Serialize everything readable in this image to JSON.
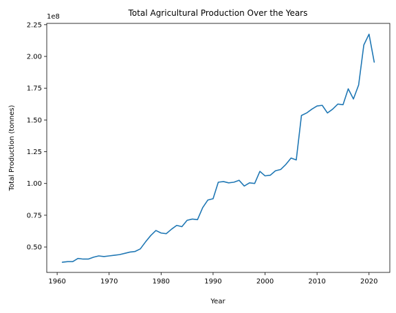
{
  "chart_data": {
    "type": "line",
    "title": "Total Agricultural Production Over the Years",
    "xlabel": "Year",
    "ylabel": "Total Production (tonnes)",
    "y_multiplier_label": "1e8",
    "y_scale": 100000000,
    "xlim": [
      1958,
      2024
    ],
    "ylim": [
      0.3,
      2.26
    ],
    "x_ticks": [
      1960,
      1970,
      1980,
      1990,
      2000,
      2010,
      2020
    ],
    "x_tick_labels": [
      "1960",
      "1970",
      "1980",
      "1990",
      "2000",
      "2010",
      "2020"
    ],
    "y_ticks": [
      0.5,
      0.75,
      1.0,
      1.25,
      1.5,
      1.75,
      2.0,
      2.25
    ],
    "y_tick_labels": [
      "0.50",
      "0.75",
      "1.00",
      "1.25",
      "1.50",
      "1.75",
      "2.00",
      "2.25"
    ],
    "grid": false,
    "colors": {
      "line": "#1f77b4"
    },
    "series": [
      {
        "x": [
          1961,
          1962,
          1963,
          1964,
          1965,
          1966,
          1967,
          1968,
          1969,
          1970,
          1971,
          1972,
          1973,
          1974,
          1975,
          1976,
          1977,
          1978,
          1979,
          1980,
          1981,
          1982,
          1983,
          1984,
          1985,
          1986,
          1987,
          1988,
          1989,
          1990,
          1991,
          1992,
          1993,
          1994,
          1995,
          1996,
          1997,
          1998,
          1999,
          2000,
          2001,
          2002,
          2003,
          2004,
          2005,
          2006,
          2007,
          2008,
          2009,
          2010,
          2011,
          2012,
          2013,
          2014,
          2015,
          2016,
          2017,
          2018,
          2019,
          2020,
          2021
        ],
        "values": [
          0.38,
          0.385,
          0.385,
          0.41,
          0.405,
          0.405,
          0.42,
          0.43,
          0.425,
          0.43,
          0.435,
          0.44,
          0.45,
          0.46,
          0.465,
          0.485,
          0.54,
          0.59,
          0.63,
          0.61,
          0.605,
          0.64,
          0.67,
          0.66,
          0.71,
          0.72,
          0.715,
          0.81,
          0.87,
          0.88,
          1.01,
          1.015,
          1.005,
          1.01,
          1.025,
          0.98,
          1.005,
          1.0,
          1.095,
          1.06,
          1.065,
          1.1,
          1.11,
          1.15,
          1.2,
          1.185,
          1.535,
          1.555,
          1.585,
          1.61,
          1.615,
          1.555,
          1.585,
          1.625,
          1.62,
          1.745,
          1.665,
          1.775,
          2.09,
          2.175,
          1.955
        ]
      }
    ]
  }
}
